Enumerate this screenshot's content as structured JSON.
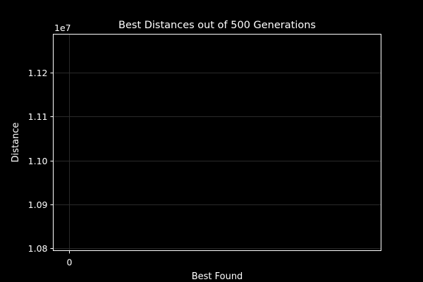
{
  "chart_data": {
    "type": "line",
    "title": "Best Distances out of 500 Generations",
    "xlabel": "Best Found",
    "ylabel": "Distance",
    "y_offset_label": "1e7",
    "y_scale": 10000000,
    "x_ticks": [
      0
    ],
    "x_tick_labels": [
      "0"
    ],
    "y_ticks": [
      1.08,
      1.09,
      1.1,
      1.11,
      1.12
    ],
    "y_tick_labels": [
      "1.08",
      "1.09",
      "1.10",
      "1.11",
      "1.12"
    ],
    "xlim": [
      -0.05,
      1.0
    ],
    "ylim": [
      1.0795,
      1.1287
    ],
    "grid": true,
    "series": [
      {
        "values": []
      }
    ]
  },
  "colors": {
    "background": "#000000",
    "axes": "#ffffff",
    "text": "#ffffff",
    "grid": "#2a2a2a"
  }
}
